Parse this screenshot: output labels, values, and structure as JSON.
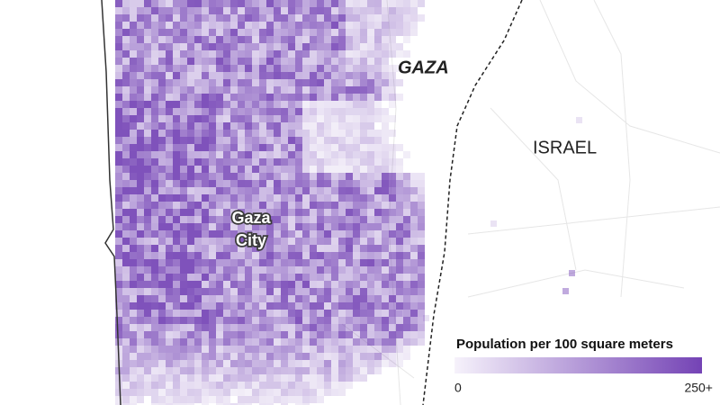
{
  "labels": {
    "region": "GAZA",
    "country": "ISRAEL",
    "city": [
      "Gaza",
      "City"
    ]
  },
  "legend": {
    "title": "Population per 100 square meters",
    "ticks": [
      0,
      {
        "value": 250,
        "label": "250+"
      }
    ]
  }
}
